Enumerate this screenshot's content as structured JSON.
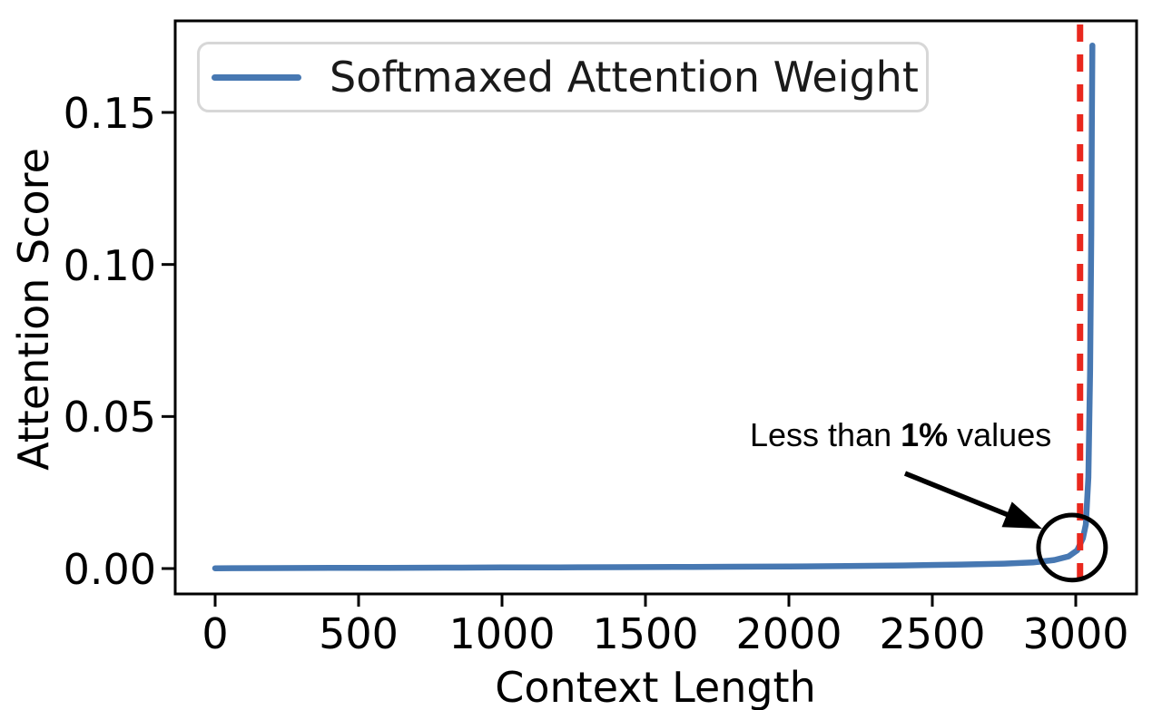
{
  "chart_data": {
    "type": "line",
    "title": "",
    "xlabel": "Context Length",
    "ylabel": "Attention Score",
    "xlim": [
      -140,
      3212
    ],
    "ylim": [
      -0.0084,
      0.1802
    ],
    "grid": false,
    "xticks": [
      0,
      500,
      1000,
      1500,
      2000,
      2500,
      3000
    ],
    "xticklabels": [
      "0",
      "500",
      "1000",
      "1500",
      "2000",
      "2500",
      "3000"
    ],
    "yticks": [
      0.0,
      0.05,
      0.1,
      0.15
    ],
    "yticklabels": [
      "0.00",
      "0.05",
      "0.10",
      "0.15"
    ],
    "legend": {
      "position": "upper left",
      "entries": [
        {
          "label": "Softmaxed Attention Weight",
          "color": "#4778B2"
        }
      ]
    },
    "series": [
      {
        "name": "Softmaxed Attention Weight",
        "color": "#4778B2",
        "x": [
          0,
          200,
          400,
          600,
          800,
          1000,
          1200,
          1400,
          1600,
          1800,
          2000,
          2200,
          2400,
          2600,
          2750,
          2850,
          2925,
          2975,
          3005,
          3025,
          3035,
          3044,
          3050,
          3054,
          3056,
          3058
        ],
        "y": [
          0.0001,
          0.00015,
          0.0002,
          0.00025,
          0.0003,
          0.00035,
          0.0004,
          0.00045,
          0.0005,
          0.0006,
          0.0007,
          0.0008,
          0.001,
          0.0013,
          0.0016,
          0.002,
          0.0028,
          0.004,
          0.006,
          0.01,
          0.0145,
          0.03,
          0.065,
          0.11,
          0.145,
          0.172
        ]
      }
    ],
    "peak": {
      "x": 3058,
      "y": 0.172
    },
    "vline": {
      "x": 3015,
      "color": "#E9281E",
      "style": "dashed"
    },
    "annotation": {
      "text": "Less than 1% values",
      "parts": {
        "prefix": "Less than ",
        "bold": "1%",
        "suffix": " values"
      },
      "arrow": {
        "from": [
          2405,
          0.0313
        ],
        "to": [
          2883,
          0.0131
        ]
      },
      "circle": {
        "cx": 2987,
        "cy": 0.0069,
        "rx": 117,
        "ry": 0.0107
      }
    },
    "axis_color": "#000000"
  }
}
